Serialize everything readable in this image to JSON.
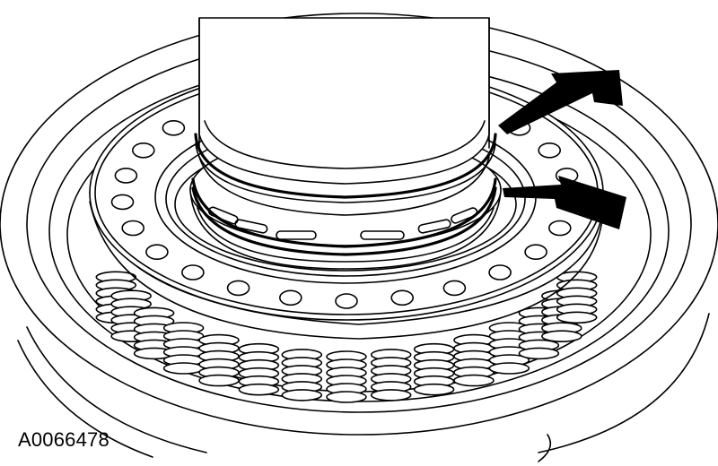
{
  "figure": {
    "id_label": "A0066478",
    "line_color": "#000000",
    "background": "#ffffff",
    "callout_arrows": 2,
    "callout_arrow_icon": "arrow-icon",
    "holes_upper_row": 25,
    "springs_visible": 15
  }
}
